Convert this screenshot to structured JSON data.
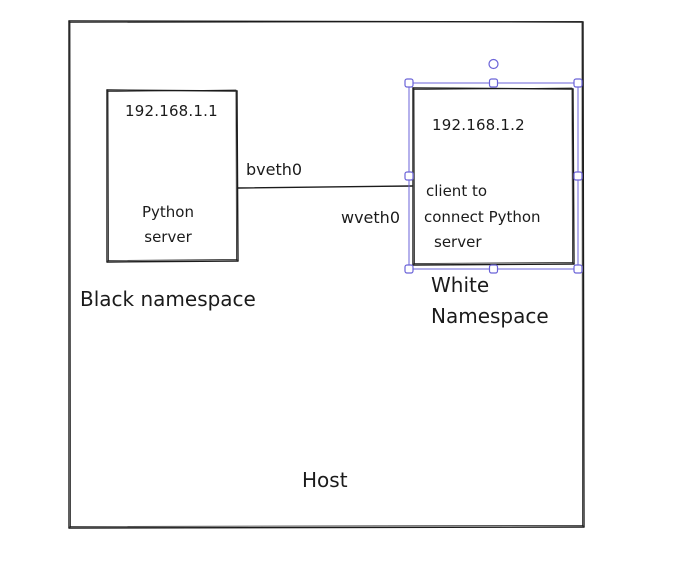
{
  "host": {
    "label": "Host"
  },
  "black_namespace": {
    "ip": "192.168.1.1",
    "content_lines": [
      "Python",
      "server"
    ],
    "interface": "bveth0",
    "name": "Black namespace"
  },
  "white_namespace": {
    "ip": "192.168.1.2",
    "content_lines": [
      "client to",
      "connect Python",
      "server"
    ],
    "interface": "wveth0",
    "name_lines": [
      "White",
      "Namespace"
    ]
  },
  "colors": {
    "stroke": "#1b1b1b",
    "selection": "#6b63d8",
    "background": "#ffffff"
  }
}
